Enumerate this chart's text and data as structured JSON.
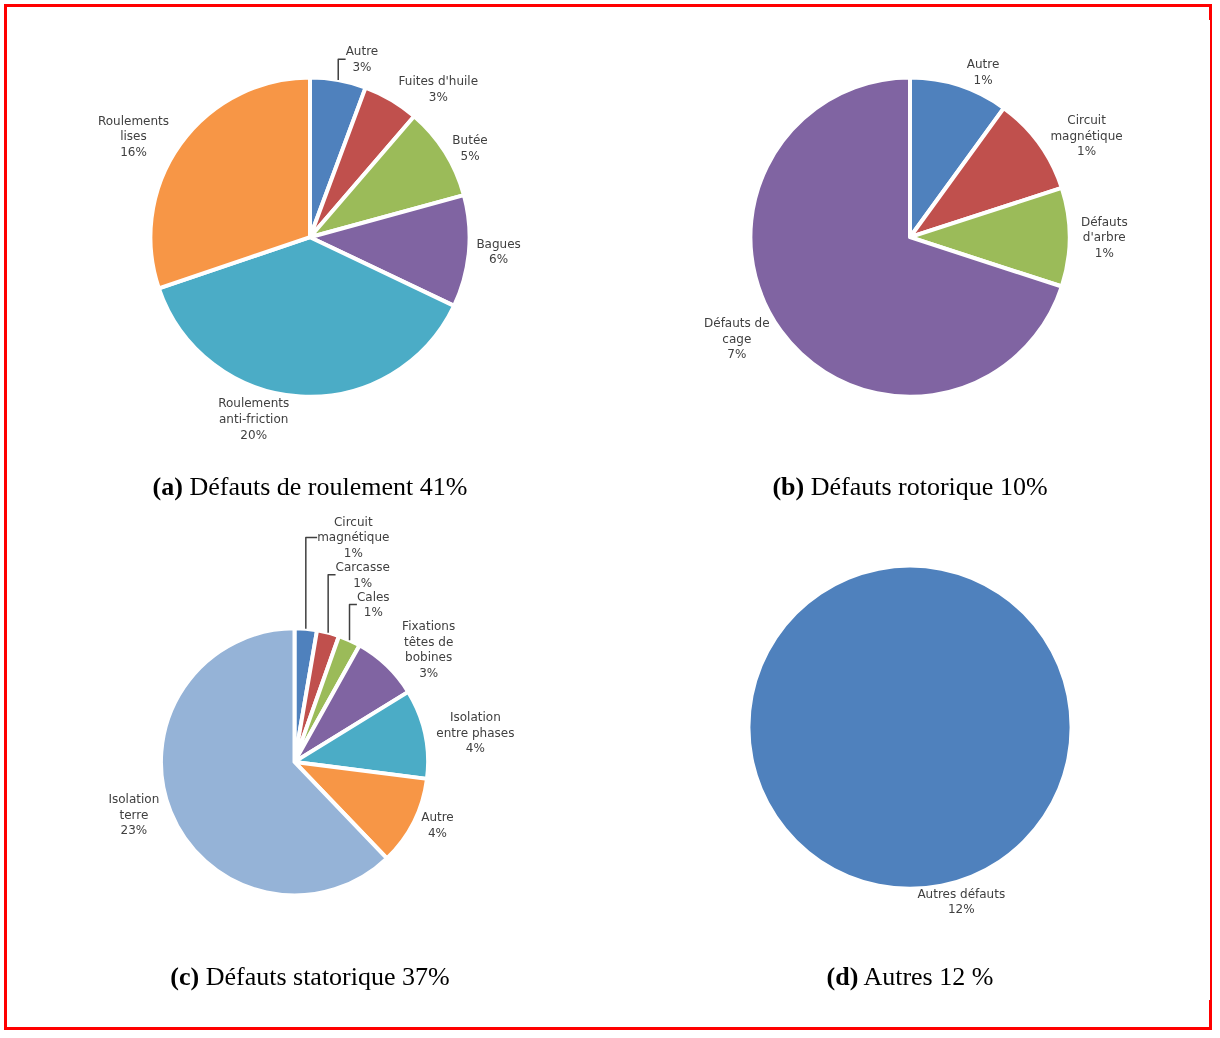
{
  "chart_data": [
    {
      "type": "pie",
      "title": "(a) Défauts de roulement 41%",
      "categories": [
        "Autre",
        "Fuites d'huile",
        "Butée",
        "Bagues",
        "Roulements anti-friction",
        "Roulements lises"
      ],
      "values": [
        3,
        3,
        5,
        6,
        20,
        16
      ],
      "value_labels": [
        "3%",
        "3%",
        "5%",
        "6%",
        "20%",
        "16%"
      ],
      "colors": [
        "#4f81bd",
        "#c0504d",
        "#9bbb59",
        "#8064a2",
        "#4bacc6",
        "#f79646"
      ]
    },
    {
      "type": "pie",
      "title": "(b) Défauts rotorique 10%",
      "categories": [
        "Autre",
        "Circuit magnétique",
        "Défauts d'arbre",
        "Défauts de cage"
      ],
      "values": [
        1,
        1,
        1,
        7
      ],
      "value_labels": [
        "1%",
        "1%",
        "1%",
        "7%"
      ],
      "colors": [
        "#4f81bd",
        "#c0504d",
        "#9bbb59",
        "#8064a2"
      ]
    },
    {
      "type": "pie",
      "title": "(c) Défauts statorique 37%",
      "categories": [
        "Circuit magnétique",
        "Carcasse",
        "Cales",
        "Fixations têtes de bobines",
        "Isolation entre phases",
        "Autre",
        "Isolation terre"
      ],
      "values": [
        1,
        1,
        1,
        3,
        4,
        4,
        23
      ],
      "value_labels": [
        "1%",
        "1%",
        "1%",
        "3%",
        "4%",
        "4%",
        "23%"
      ],
      "colors": [
        "#4f81bd",
        "#c0504d",
        "#9bbb59",
        "#8064a2",
        "#4bacc6",
        "#f79646",
        "#95b3d7"
      ]
    },
    {
      "type": "pie",
      "title": "(d) Autres 12 %",
      "categories": [
        "Autres défauts"
      ],
      "values": [
        12
      ],
      "value_labels": [
        "12%"
      ],
      "colors": [
        "#4f81bd"
      ]
    }
  ]
}
